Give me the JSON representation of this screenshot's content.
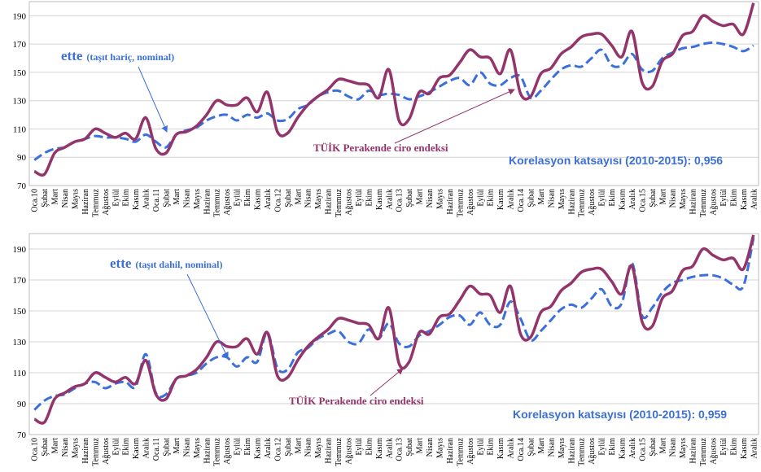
{
  "chart_data": [
    {
      "type": "line",
      "categories": [
        "Oca.10",
        "Şubat",
        "Mart",
        "Nisan",
        "Mayıs",
        "Haziran",
        "Temmuz",
        "Ağustos",
        "Eylül",
        "Ekim",
        "Kasım",
        "Aralık",
        "Oca.11",
        "Şubat",
        "Mart",
        "Nisan",
        "Mayıs",
        "Haziran",
        "Temmuz",
        "Ağustos",
        "Eylül",
        "Ekim",
        "Kasım",
        "Aralık",
        "Oca.12",
        "Şubat",
        "Mart",
        "Nisan",
        "Mayıs",
        "Haziran",
        "Temmuz",
        "Ağustos",
        "Eylül",
        "Ekim",
        "Kasım",
        "Aralık",
        "Oca.13",
        "Şubat",
        "Mart",
        "Nisan",
        "Mayıs",
        "Haziran",
        "Temmuz",
        "Ağustos",
        "Eylül",
        "Ekim",
        "Kasım",
        "Aralık",
        "Oca.14",
        "Şubat",
        "Mart",
        "Nisan",
        "Mayıs",
        "Haziran",
        "Temmuz",
        "Ağustos",
        "Eylül",
        "Ekim",
        "Kasım",
        "Aralık",
        "Oca.15",
        "Şubat",
        "Mart",
        "Nisan",
        "Mayıs",
        "Haziran",
        "Temmuz",
        "Ağustos",
        "Eylül",
        "Ekim",
        "Kasım",
        "Aralık"
      ],
      "series": [
        {
          "name": "TÜİK Perakende ciro endeksi",
          "color": "#93346a",
          "line_style": "solid",
          "values": [
            80,
            78,
            93,
            97,
            101,
            103,
            110,
            107,
            104,
            107,
            103,
            118,
            96,
            93,
            106,
            108,
            112,
            120,
            130,
            127,
            127,
            132,
            122,
            136,
            108,
            107,
            118,
            127,
            133,
            138,
            145,
            144,
            142,
            141,
            132,
            152,
            116,
            117,
            136,
            135,
            146,
            148,
            157,
            166,
            161,
            160,
            149,
            166,
            135,
            133,
            149,
            153,
            163,
            168,
            175,
            177,
            177,
            169,
            161,
            179,
            143,
            140,
            158,
            163,
            176,
            179,
            190,
            186,
            183,
            184,
            177,
            199
          ]
        },
        {
          "name": "ette",
          "note": "(taşıt hariç, nominal)",
          "color": "#3a6fdc",
          "line_style": "dashed",
          "values": [
            88,
            93,
            96,
            97,
            101,
            103,
            105,
            104,
            104,
            103,
            101,
            106,
            101,
            97,
            106,
            109,
            111,
            116,
            119,
            120,
            116,
            120,
            118,
            121,
            116,
            117,
            124,
            127,
            133,
            136,
            137,
            133,
            131,
            137,
            134,
            135,
            134,
            131,
            133,
            136,
            140,
            144,
            146,
            141,
            150,
            142,
            141,
            146,
            147,
            132,
            137,
            145,
            152,
            155,
            154,
            160,
            166,
            155,
            155,
            163,
            152,
            151,
            160,
            164,
            167,
            168,
            170,
            171,
            170,
            168,
            165,
            169
          ]
        }
      ],
      "annotation": "Korelasyon katsayısı (2010-2015): 0,956",
      "ylim": [
        70,
        200
      ],
      "yticks": [
        70,
        90,
        110,
        130,
        150,
        170,
        190
      ],
      "grid": true
    },
    {
      "type": "line",
      "categories": [
        "Oca.10",
        "Şubat",
        "Mart",
        "Nisan",
        "Mayıs",
        "Haziran",
        "Temmuz",
        "Ağustos",
        "Eylül",
        "Ekim",
        "Kasım",
        "Aralık",
        "Oca.11",
        "Şubat",
        "Mart",
        "Nisan",
        "Mayıs",
        "Haziran",
        "Temmuz",
        "Ağustos",
        "Eylül",
        "Ekim",
        "Kasım",
        "Aralık",
        "Oca.12",
        "Şubat",
        "Mart",
        "Nisan",
        "Mayıs",
        "Haziran",
        "Temmuz",
        "Ağustos",
        "Eylül",
        "Ekim",
        "Kasım",
        "Aralık",
        "Oca.13",
        "Şubat",
        "Mart",
        "Nisan",
        "Mayıs",
        "Haziran",
        "Temmuz",
        "Ağustos",
        "Eylül",
        "Ekim",
        "Kasım",
        "Aralık",
        "Oca.14",
        "Şubat",
        "Mart",
        "Nisan",
        "Mayıs",
        "Haziran",
        "Temmuz",
        "Ağustos",
        "Eylül",
        "Ekim",
        "Kasım",
        "Aralık",
        "Oca.15",
        "Şubat",
        "Mart",
        "Nisan",
        "Mayıs",
        "Haziran",
        "Temmuz",
        "Ağustos",
        "Eylül",
        "Ekim",
        "Kasım",
        "Aralık"
      ],
      "series": [
        {
          "name": "TÜİK Perakende ciro endeksi",
          "color": "#93346a",
          "line_style": "solid",
          "values": [
            80,
            78,
            93,
            97,
            101,
            103,
            110,
            107,
            104,
            107,
            103,
            118,
            96,
            93,
            106,
            108,
            112,
            120,
            130,
            127,
            127,
            132,
            122,
            136,
            108,
            107,
            118,
            127,
            133,
            138,
            145,
            144,
            142,
            141,
            132,
            152,
            116,
            117,
            136,
            135,
            146,
            148,
            157,
            166,
            161,
            160,
            149,
            166,
            135,
            133,
            149,
            153,
            163,
            168,
            175,
            177,
            177,
            169,
            161,
            179,
            143,
            140,
            158,
            163,
            176,
            179,
            190,
            186,
            183,
            184,
            177,
            199
          ]
        },
        {
          "name": "ette",
          "note": "(taşıt dahil, nominal)",
          "color": "#3a6fdc",
          "line_style": "dashed",
          "values": [
            86,
            92,
            95,
            96,
            100,
            103,
            104,
            100,
            103,
            104,
            101,
            122,
            97,
            96,
            106,
            108,
            110,
            116,
            120,
            120,
            114,
            120,
            117,
            136,
            113,
            112,
            123,
            126,
            132,
            135,
            137,
            130,
            129,
            138,
            132,
            142,
            129,
            127,
            134,
            137,
            141,
            146,
            147,
            141,
            149,
            141,
            141,
            156,
            145,
            131,
            137,
            144,
            151,
            154,
            152,
            158,
            164,
            153,
            155,
            181,
            147,
            152,
            162,
            168,
            170,
            172,
            173,
            173,
            171,
            167,
            166,
            197
          ]
        }
      ],
      "annotation": "Korelasyon katsayısı (2010-2015): 0,959",
      "ylim": [
        70,
        200
      ],
      "yticks": [
        70,
        90,
        110,
        130,
        150,
        170,
        190
      ],
      "grid": true
    }
  ]
}
